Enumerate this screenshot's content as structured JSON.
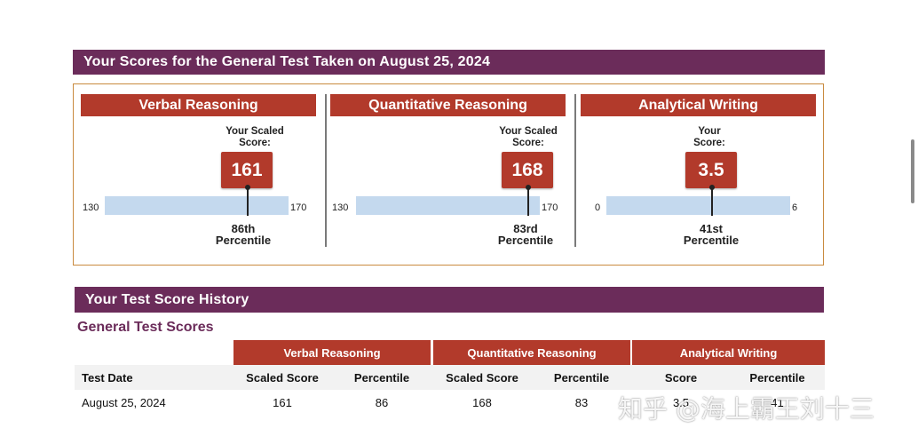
{
  "summary": {
    "title": "Your Scores for the General Test Taken on August 25, 2024",
    "sections": [
      {
        "name": "Verbal Reasoning",
        "your_label": "Your Scaled\nScore:",
        "score": "161",
        "min": "130",
        "max": "170",
        "score_value": 161,
        "min_value": 130,
        "max_value": 170,
        "percentile_label": "86th\nPercentile"
      },
      {
        "name": "Quantitative Reasoning",
        "your_label": "Your Scaled\nScore:",
        "score": "168",
        "min": "130",
        "max": "170",
        "score_value": 168,
        "min_value": 130,
        "max_value": 170,
        "percentile_label": "83rd\nPercentile"
      },
      {
        "name": "Analytical Writing",
        "your_label": "Your\nScore:",
        "score": "3.5",
        "min": "0",
        "max": "6",
        "score_value": 3.5,
        "min_value": 0,
        "max_value": 6,
        "percentile_label": "41st\nPercentile"
      }
    ]
  },
  "history": {
    "title": "Your Test Score History",
    "subtitle": "General Test Scores",
    "groups": [
      "Verbal Reasoning",
      "Quantitative Reasoning",
      "Analytical Writing"
    ],
    "columns": [
      "Test Date",
      "Scaled Score",
      "Percentile",
      "Scaled Score",
      "Percentile",
      "Score",
      "Percentile"
    ],
    "rows": [
      {
        "date": "August 25, 2024",
        "vr_score": "161",
        "vr_pct": "86",
        "qr_score": "168",
        "qr_pct": "83",
        "aw_score": "3.5",
        "aw_pct": "41"
      }
    ]
  },
  "watermark": "知乎 @海上霸王刘十三",
  "colors": {
    "purple": "#6b2c5a",
    "red": "#b23a2b",
    "scale_blue": "#c4d9ee",
    "panel_border": "#c98a3e"
  }
}
